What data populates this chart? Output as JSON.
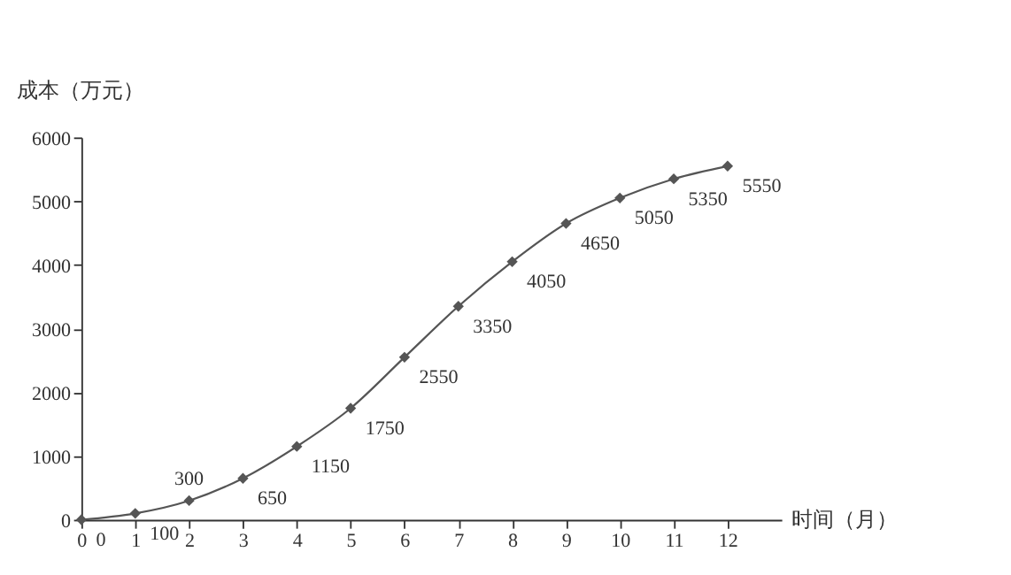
{
  "chart_data": {
    "type": "line",
    "xlabel": "时间（月）",
    "ylabel": "成本（万元）",
    "x": [
      0,
      1,
      2,
      3,
      4,
      5,
      6,
      7,
      8,
      9,
      10,
      11,
      12
    ],
    "series": [
      {
        "color": "#555555",
        "values": [
          0,
          100,
          300,
          650,
          1150,
          1750,
          2550,
          3350,
          4050,
          4650,
          5050,
          5350,
          5550
        ]
      }
    ],
    "xlim": [
      0,
      13
    ],
    "xticks": [
      0,
      1,
      2,
      3,
      4,
      5,
      6,
      7,
      8,
      9,
      10,
      11,
      12
    ],
    "ylim": [
      0,
      6000
    ],
    "yticks": [
      0,
      1000,
      2000,
      3000,
      4000,
      5000,
      6000
    ],
    "grid": false,
    "marker": "diamond",
    "line_style": "solid",
    "data_labels": true
  }
}
